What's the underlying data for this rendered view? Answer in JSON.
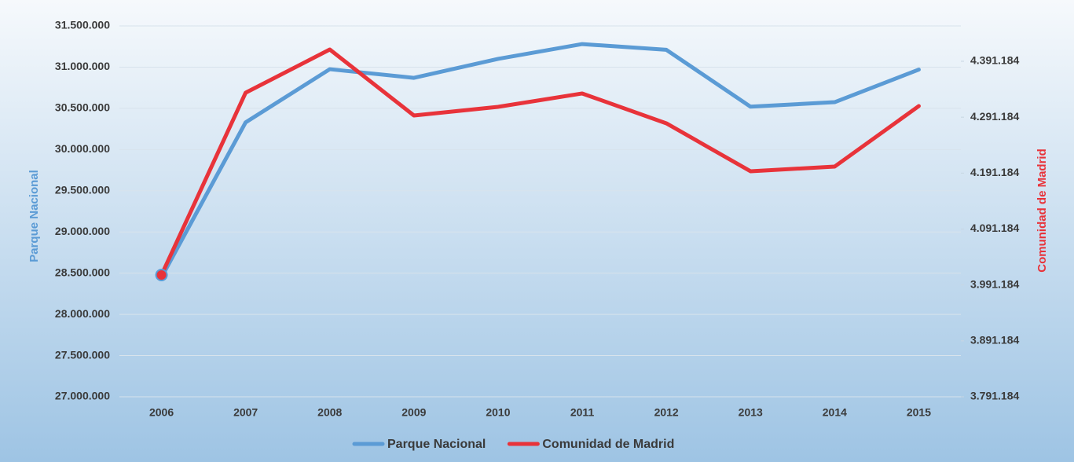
{
  "chart_data": {
    "type": "line",
    "categories": [
      "2006",
      "2007",
      "2008",
      "2009",
      "2010",
      "2011",
      "2012",
      "2013",
      "2014",
      "2015"
    ],
    "ylabel": "Parque Nacional",
    "y2label": "Comunidad de Madrid",
    "ylim": [
      27000000,
      31500000
    ],
    "yticks": [
      {
        "value": 27000000,
        "label": "27.000.000"
      },
      {
        "value": 27500000,
        "label": "27.500.000"
      },
      {
        "value": 28000000,
        "label": "28.000.000"
      },
      {
        "value": 28500000,
        "label": "28.500.000"
      },
      {
        "value": 29000000,
        "label": "29.000.000"
      },
      {
        "value": 29500000,
        "label": "29.500.000"
      },
      {
        "value": 30000000,
        "label": "30.000.000"
      },
      {
        "value": 30500000,
        "label": "30.500.000"
      },
      {
        "value": 31000000,
        "label": "31.000.000"
      },
      {
        "value": 31500000,
        "label": "31.500.000"
      }
    ],
    "y2lim": [
      3791184,
      4454384
    ],
    "y2ticks": [
      {
        "value": 3791184,
        "label": "3.791.184"
      },
      {
        "value": 3891184,
        "label": "3.891.184"
      },
      {
        "value": 3991184,
        "label": "3.991.184"
      },
      {
        "value": 4091184,
        "label": "4.091.184"
      },
      {
        "value": 4191184,
        "label": "4.191.184"
      },
      {
        "value": 4291184,
        "label": "4.291.184"
      },
      {
        "value": 4391184,
        "label": "4.391.184"
      }
    ],
    "grid": true,
    "legend": "bottom",
    "series": [
      {
        "name": "Parque Nacional",
        "color": "#5b9bd5",
        "values": [
          28450000,
          30330000,
          30975000,
          30870000,
          31100000,
          31280000,
          31210000,
          30520000,
          30575000,
          30970000
        ]
      },
      {
        "name": "Comunidad de Madrid",
        "color": "#e8333a",
        "axis": "y2",
        "values": [
          4009000,
          4335000,
          4412200,
          4294200,
          4309700,
          4333600,
          4280200,
          4194500,
          4202900,
          4311100
        ]
      }
    ]
  }
}
